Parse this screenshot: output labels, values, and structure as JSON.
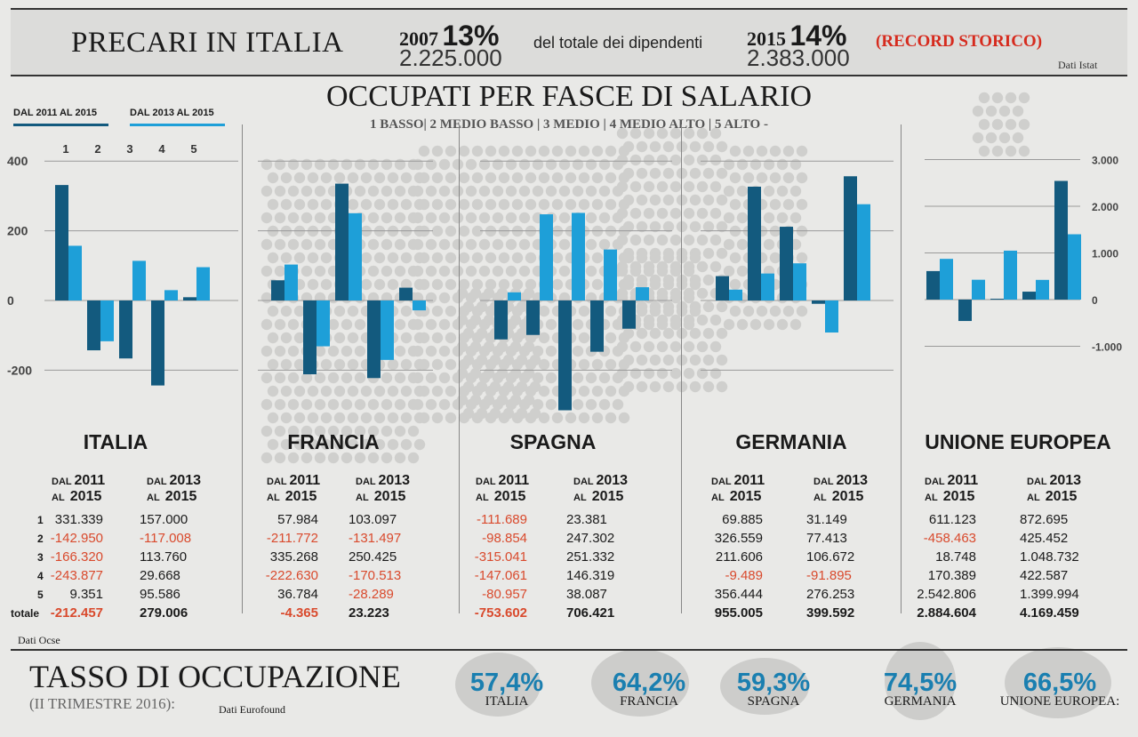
{
  "header": {
    "title": "PRECARI IN ITALIA",
    "left": {
      "year": "2007",
      "pct": "13%",
      "count": "2.225.000"
    },
    "middle": "del totale dei dipendenti",
    "right": {
      "year": "2015",
      "pct": "14%",
      "count": "2.383.000"
    },
    "record": "(RECORD STORICO)",
    "source": "Dati Istat"
  },
  "section": {
    "title": "OCCUPATI PER FASCE DI SALARIO",
    "subtitle": "1 BASSO| 2 MEDIO BASSO | 3 MEDIO | 4 MEDIO ALTO | 5 ALTO -",
    "legend": [
      {
        "label": "DAL 2011 AL 2015",
        "color": "#135a7e"
      },
      {
        "label": "DAL 2013 AL 2015",
        "color": "#1e9fd8"
      }
    ],
    "table_head": {
      "dal": "DAL",
      "al": "AL",
      "y2011": "2011",
      "y2013": "2013",
      "y2015": "2015"
    },
    "row_labels": [
      "1",
      "2",
      "3",
      "4",
      "5",
      "totale"
    ],
    "source": "Dati Ocse"
  },
  "colors": {
    "dark": "#135a7e",
    "light": "#1e9fd8",
    "negative": "#d94a2d",
    "rate": "#1a7fb0"
  },
  "chart_data": [
    {
      "type": "bar",
      "title": "ITALIA",
      "categories": [
        "1",
        "2",
        "3",
        "4",
        "5"
      ],
      "series": [
        {
          "name": "DAL 2011 AL 2015",
          "values": [
            331.339,
            -142.95,
            -166.32,
            -243.877,
            9.351
          ]
        },
        {
          "name": "DAL 2013 AL 2015",
          "values": [
            157.0,
            -117.008,
            113.76,
            29.668,
            95.586
          ]
        }
      ],
      "yticks": [
        "400",
        "200",
        "0",
        "-200"
      ],
      "ylim": [
        -300,
        400
      ],
      "table": {
        "s1": [
          "331.339",
          "-142.950",
          "-166.320",
          "-243.877",
          "9.351"
        ],
        "s2": [
          "157.000",
          "-117.008",
          "113.760",
          "29.668",
          "95.586"
        ],
        "total1": "-212.457",
        "total2": "279.006"
      }
    },
    {
      "type": "bar",
      "title": "FRANCIA",
      "categories": [
        "1",
        "2",
        "3",
        "4",
        "5"
      ],
      "series": [
        {
          "name": "DAL 2011 AL 2015",
          "values": [
            57.984,
            -211.772,
            335.268,
            -222.63,
            36.784
          ]
        },
        {
          "name": "DAL 2013 AL 2015",
          "values": [
            103.097,
            -131.497,
            250.425,
            -170.513,
            -28.289
          ]
        }
      ],
      "ylim": [
        -300,
        400
      ],
      "table": {
        "s1": [
          "57.984",
          "-211.772",
          "335.268",
          "-222.630",
          "36.784"
        ],
        "s2": [
          "103.097",
          "-131.497",
          "250.425",
          "-170.513",
          "-28.289"
        ],
        "total1": "-4.365",
        "total2": "23.223"
      }
    },
    {
      "type": "bar",
      "title": "SPAGNA",
      "categories": [
        "1",
        "2",
        "3",
        "4",
        "5"
      ],
      "series": [
        {
          "name": "DAL 2011 AL 2015",
          "values": [
            -111.689,
            -98.854,
            -315.041,
            -147.061,
            -80.957
          ]
        },
        {
          "name": "DAL 2013 AL 2015",
          "values": [
            23.381,
            247.302,
            251.332,
            146.319,
            38.087
          ]
        }
      ],
      "ylim": [
        -300,
        400
      ],
      "table": {
        "s1": [
          "-111.689",
          "-98.854",
          "-315.041",
          "-147.061",
          "-80.957"
        ],
        "s2": [
          "23.381",
          "247.302",
          "251.332",
          "146.319",
          "38.087"
        ],
        "total1": "-753.602",
        "total2": "706.421"
      }
    },
    {
      "type": "bar",
      "title": "GERMANIA",
      "categories": [
        "1",
        "2",
        "3",
        "4",
        "5"
      ],
      "series": [
        {
          "name": "DAL 2011 AL 2015",
          "values": [
            69.885,
            326.559,
            211.606,
            -9.489,
            356.444
          ]
        },
        {
          "name": "DAL 2013 AL 2015",
          "values": [
            31.149,
            77.413,
            106.672,
            -91.895,
            276.253
          ]
        }
      ],
      "ylim": [
        -300,
        400
      ],
      "table": {
        "s1": [
          "69.885",
          "326.559",
          "211.606",
          "-9.489",
          "356.444"
        ],
        "s2": [
          "31.149",
          "77.413",
          "106.672",
          "-91.895",
          "276.253"
        ],
        "total1": "955.005",
        "total2": "399.592"
      }
    },
    {
      "type": "bar",
      "title": "UNIONE EUROPEA",
      "categories": [
        "1",
        "2",
        "3",
        "4",
        "5"
      ],
      "series": [
        {
          "name": "DAL 2011 AL 2015",
          "values": [
            611.123,
            -458.463,
            18.748,
            170.389,
            2542.806
          ]
        },
        {
          "name": "DAL 2013 AL 2015",
          "values": [
            872.695,
            425.452,
            1048.732,
            422.587,
            1399.994
          ]
        }
      ],
      "yticks": [
        "3.000",
        "2.000",
        "1.000",
        "0",
        "-1.000"
      ],
      "ylim": [
        -1000,
        3000
      ],
      "table": {
        "s1": [
          "611.123",
          "-458.463",
          "18.748",
          "170.389",
          "2.542.806"
        ],
        "s2": [
          "872.695",
          "425.452",
          "1.048.732",
          "422.587",
          "1.399.994"
        ],
        "total1": "2.884.604",
        "total2": "4.169.459"
      }
    }
  ],
  "footer": {
    "title": "TASSO DI OCCUPAZIONE",
    "subtitle": "(II TRIMESTRE 2016):",
    "source": "Dati Eurofound",
    "rates": [
      {
        "value": "57,4%",
        "name": "ITALIA"
      },
      {
        "value": "64,2%",
        "name": "FRANCIA"
      },
      {
        "value": "59,3%",
        "name": "SPAGNA"
      },
      {
        "value": "74,5%",
        "name": "GERMANIA"
      },
      {
        "value": "66,5%",
        "name": "UNIONE EUROPEA:"
      }
    ]
  }
}
